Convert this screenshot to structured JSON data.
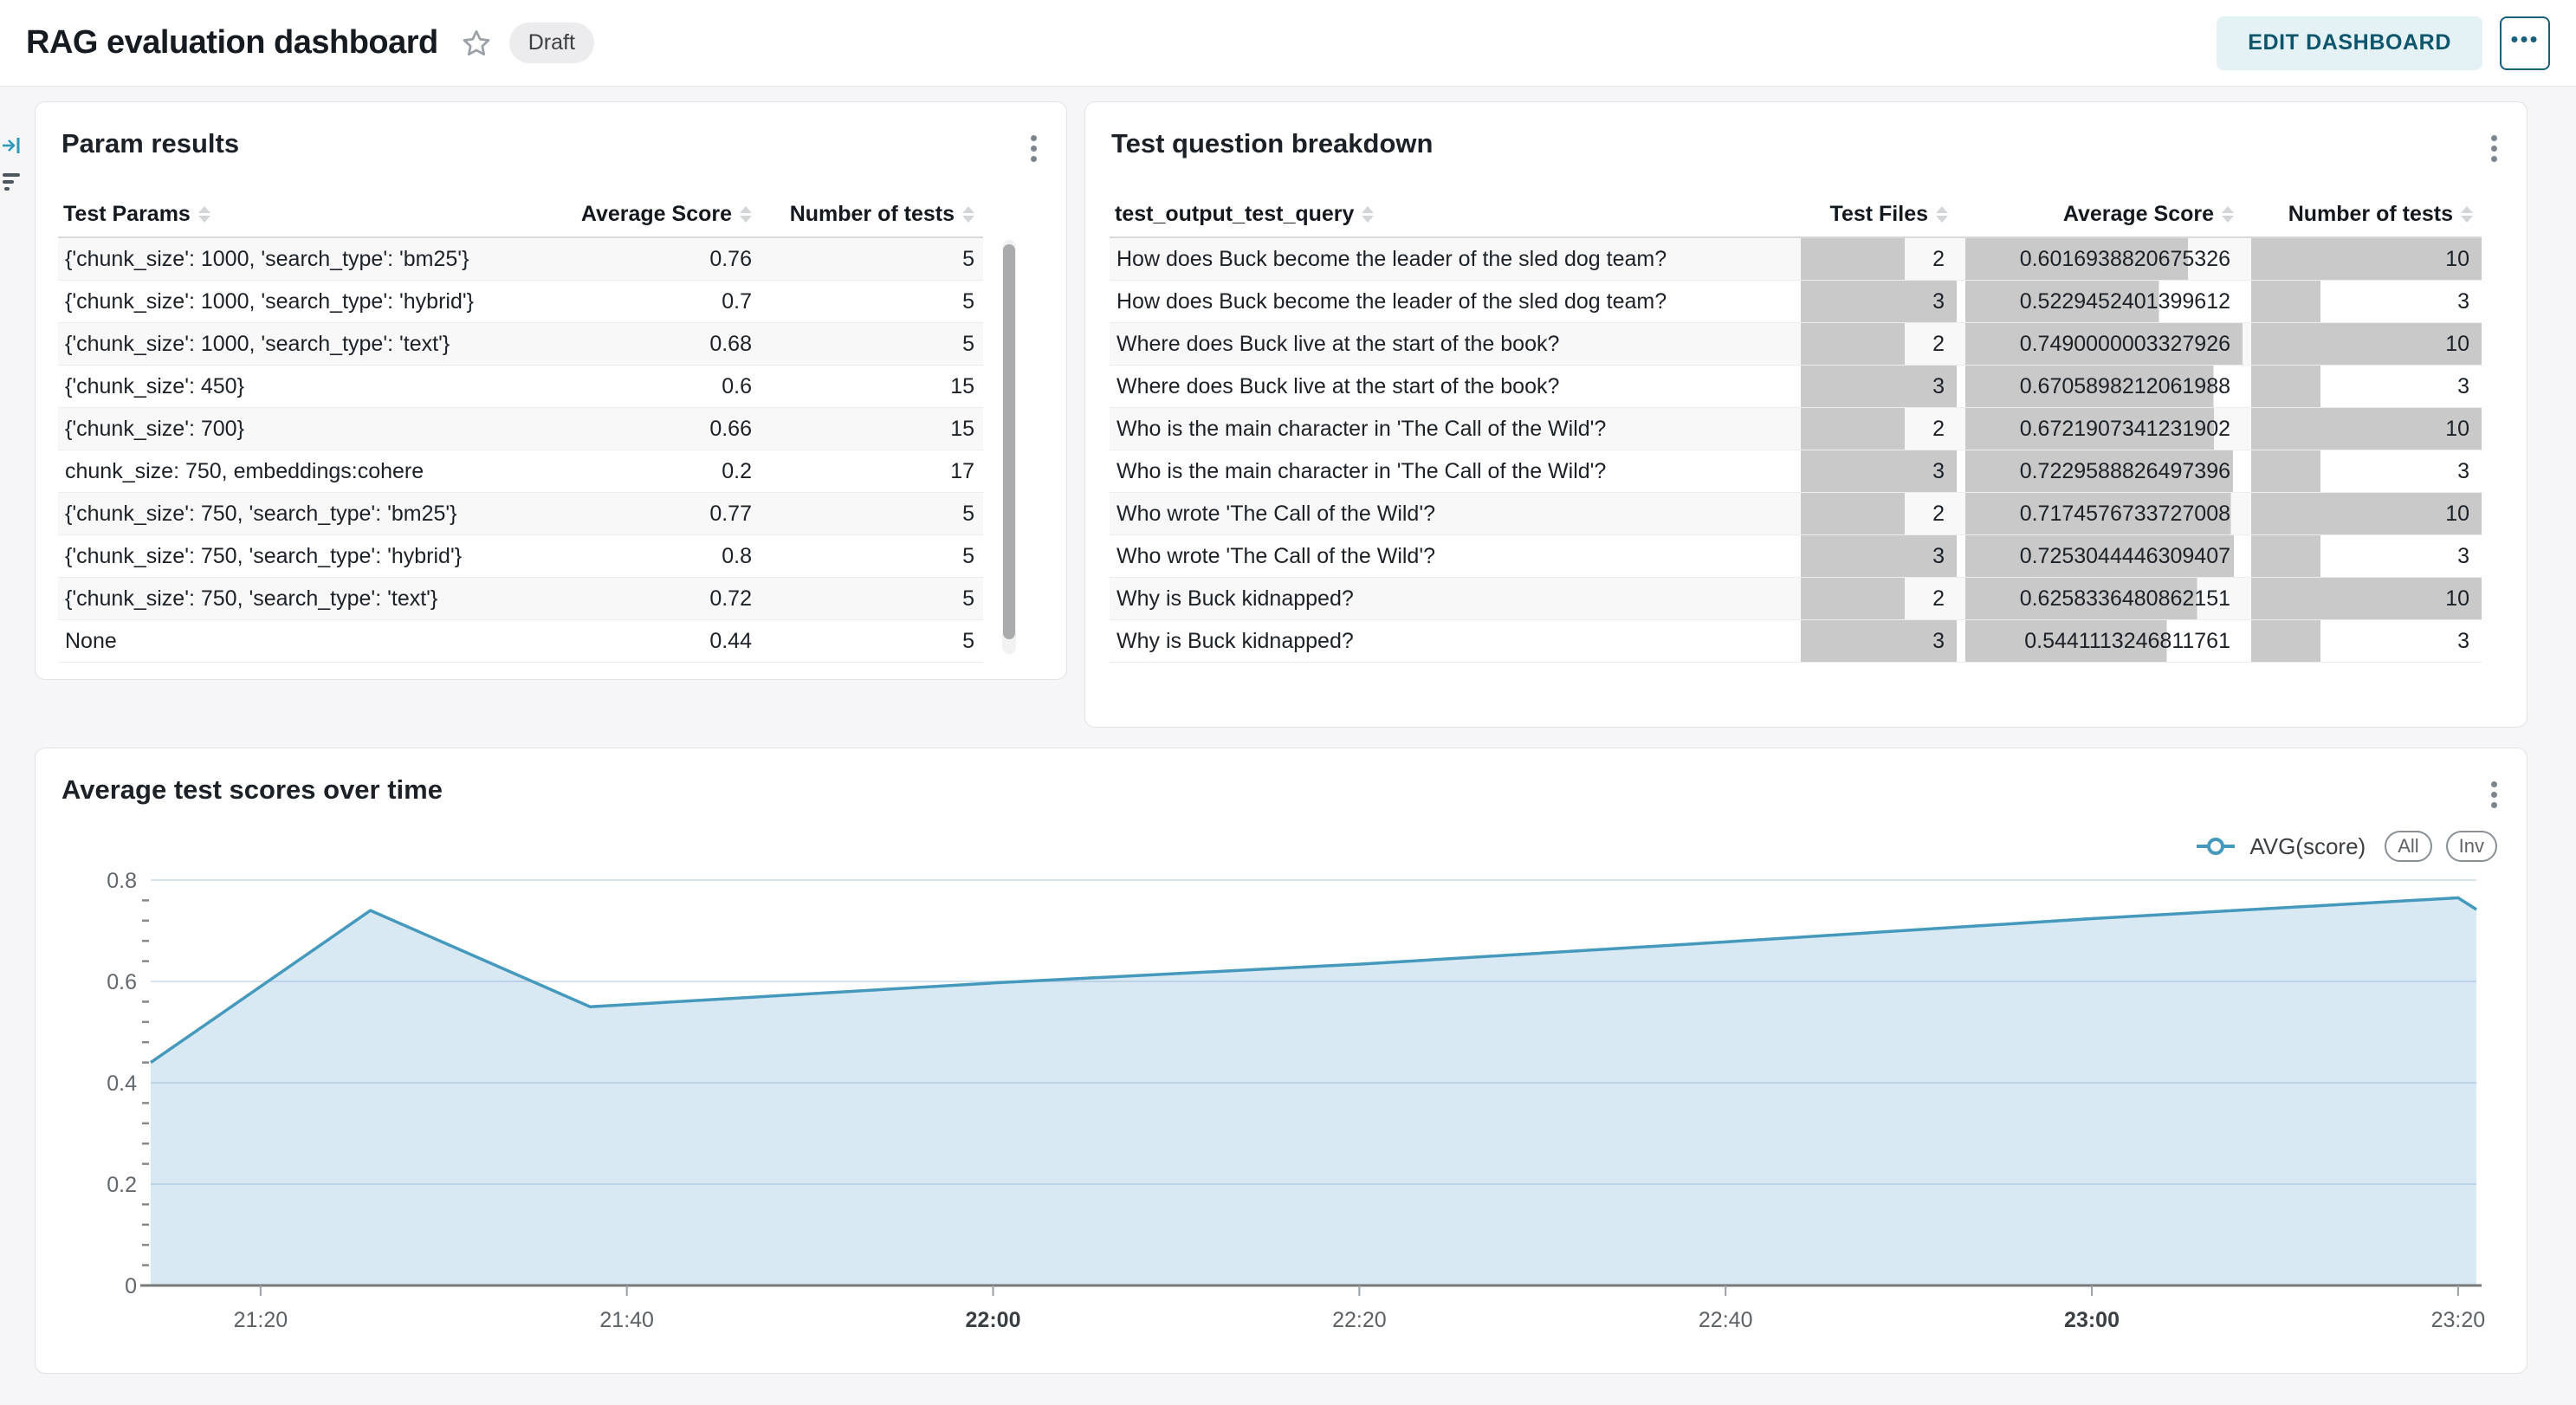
{
  "header": {
    "title": "RAG evaluation dashboard",
    "status_badge": "Draft",
    "edit_button": "EDIT DASHBOARD",
    "more_button": "•••"
  },
  "side_icons": {
    "collapse": "arrow-to-bar-icon",
    "filter": "filter-icon"
  },
  "colors": {
    "accent_teal": "#16607b",
    "edit_button_bg": "#e4f1f5",
    "chart_line": "#4599bd",
    "chart_fill": "#d9e9f3",
    "data_bar": "#c9c9c9",
    "badge_bg": "#ececee"
  },
  "param_results": {
    "title": "Param results",
    "columns": [
      "Test Params",
      "Average Score",
      "Number of tests"
    ],
    "rows": [
      {
        "params": "{'chunk_size': 1000, 'search_type': 'bm25'}",
        "avg_score": "0.76",
        "num_tests": "5"
      },
      {
        "params": "{'chunk_size': 1000, 'search_type': 'hybrid'}",
        "avg_score": "0.7",
        "num_tests": "5"
      },
      {
        "params": "{'chunk_size': 1000, 'search_type': 'text'}",
        "avg_score": "0.68",
        "num_tests": "5"
      },
      {
        "params": "{'chunk_size': 450}",
        "avg_score": "0.6",
        "num_tests": "15"
      },
      {
        "params": "{'chunk_size': 700}",
        "avg_score": "0.66",
        "num_tests": "15"
      },
      {
        "params": "chunk_size: 750, embeddings:cohere",
        "avg_score": "0.2",
        "num_tests": "17"
      },
      {
        "params": "{'chunk_size': 750, 'search_type': 'bm25'}",
        "avg_score": "0.77",
        "num_tests": "5"
      },
      {
        "params": "{'chunk_size': 750, 'search_type': 'hybrid'}",
        "avg_score": "0.8",
        "num_tests": "5"
      },
      {
        "params": "{'chunk_size': 750, 'search_type': 'text'}",
        "avg_score": "0.72",
        "num_tests": "5"
      },
      {
        "params": "None",
        "avg_score": "0.44",
        "num_tests": "5"
      }
    ]
  },
  "question_breakdown": {
    "title": "Test question breakdown",
    "columns": [
      "test_output_test_query",
      "Test Files",
      "Average Score",
      "Number of tests"
    ],
    "bar_max": {
      "test_files": 3,
      "avg_score": 0.7490000003327926,
      "num_tests": 10
    },
    "rows": [
      {
        "query": "How does Buck become the leader of the sled dog team?",
        "test_files": 2,
        "avg_score": "0.6016938820675326",
        "num_tests": 10
      },
      {
        "query": "How does Buck become the leader of the sled dog team?",
        "test_files": 3,
        "avg_score": "0.5229452401399612",
        "num_tests": 3
      },
      {
        "query": "Where does Buck live at the start of the book?",
        "test_files": 2,
        "avg_score": "0.7490000003327926",
        "num_tests": 10
      },
      {
        "query": "Where does Buck live at the start of the book?",
        "test_files": 3,
        "avg_score": "0.6705898212061988",
        "num_tests": 3
      },
      {
        "query": "Who is the main character in 'The Call of the Wild'?",
        "test_files": 2,
        "avg_score": "0.6721907341231902",
        "num_tests": 10
      },
      {
        "query": "Who is the main character in 'The Call of the Wild'?",
        "test_files": 3,
        "avg_score": "0.7229588826497396",
        "num_tests": 3
      },
      {
        "query": "Who wrote 'The Call of the Wild'?",
        "test_files": 2,
        "avg_score": "0.7174576733727008",
        "num_tests": 10
      },
      {
        "query": "Who wrote 'The Call of the Wild'?",
        "test_files": 3,
        "avg_score": "0.7253044446309407",
        "num_tests": 3
      },
      {
        "query": "Why is Buck kidnapped?",
        "test_files": 2,
        "avg_score": "0.6258336480862151",
        "num_tests": 10
      },
      {
        "query": "Why is Buck kidnapped?",
        "test_files": 3,
        "avg_score": "0.5441113246811761",
        "num_tests": 3
      }
    ]
  },
  "chart_data": {
    "type": "area",
    "title": "Average test scores over time",
    "series": [
      {
        "name": "AVG(score)",
        "points": [
          [
            "21:14",
            0.44
          ],
          [
            "21:26",
            0.74
          ],
          [
            "21:38",
            0.55
          ],
          [
            "22:00",
            0.597
          ],
          [
            "22:20",
            0.634
          ],
          [
            "22:40",
            0.678
          ],
          [
            "23:00",
            0.724
          ],
          [
            "23:20",
            0.765
          ],
          [
            "23:21",
            0.742
          ]
        ]
      }
    ],
    "legend_buttons": [
      "All",
      "Inv"
    ],
    "x_ticks": [
      "21:20",
      "21:40",
      "22:00",
      "22:20",
      "22:40",
      "23:00",
      "23:20"
    ],
    "x_ticks_bold": [
      "22:00",
      "23:00"
    ],
    "y_ticks": [
      0,
      0.2,
      0.4,
      0.6,
      0.8
    ],
    "y_minor_tick_step": 0.04,
    "ylim": [
      0,
      0.8
    ],
    "x_domain": [
      "21:14",
      "23:21"
    ],
    "grid": "horizontal",
    "legend_position": "top-right"
  }
}
